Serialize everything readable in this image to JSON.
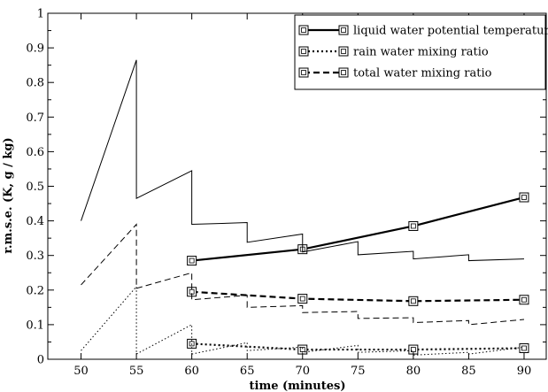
{
  "chart_data": {
    "type": "line",
    "title": "",
    "xlabel": "time (minutes)",
    "ylabel": "r.m.s.e. (K,  g / kg)",
    "xlim": [
      47,
      92
    ],
    "ylim": [
      0,
      1
    ],
    "xticks": [
      50,
      55,
      60,
      65,
      70,
      75,
      80,
      85,
      90
    ],
    "yticks": [
      0,
      0.1,
      0.2,
      0.3,
      0.4,
      0.5,
      0.6,
      0.7,
      0.8,
      0.9,
      1
    ],
    "grid": false,
    "legend_position": "top-right",
    "series": [
      {
        "name": "liquid water potential temperature",
        "style": "solid",
        "thick": true,
        "marker": "square",
        "x": [
          60,
          70,
          80,
          90
        ],
        "y": [
          0.285,
          0.318,
          0.385,
          0.468
        ]
      },
      {
        "name": "rain water mixing ratio",
        "style": "dotted",
        "thick": true,
        "marker": "square",
        "x": [
          60,
          70,
          80,
          90
        ],
        "y": [
          0.045,
          0.028,
          0.028,
          0.032
        ]
      },
      {
        "name": "total water mixing ratio",
        "style": "dashed",
        "thick": true,
        "marker": "square",
        "x": [
          60,
          70,
          80,
          90
        ],
        "y": [
          0.195,
          0.175,
          0.168,
          0.172
        ]
      },
      {
        "name": "",
        "style": "solid",
        "thick": false,
        "marker": "none",
        "x": [
          50,
          55,
          55,
          60,
          60,
          65,
          65,
          70,
          70,
          75,
          75,
          80,
          80,
          85,
          85,
          90
        ],
        "y": [
          0.4,
          0.865,
          0.465,
          0.545,
          0.39,
          0.395,
          0.338,
          0.362,
          0.31,
          0.34,
          0.302,
          0.312,
          0.29,
          0.302,
          0.285,
          0.29
        ]
      },
      {
        "name": "",
        "style": "dashed",
        "thick": false,
        "marker": "none",
        "x": [
          50,
          55,
          55,
          60,
          60,
          65,
          65,
          70,
          70,
          75,
          75,
          80,
          80,
          85,
          85,
          90
        ],
        "y": [
          0.215,
          0.39,
          0.205,
          0.25,
          0.172,
          0.185,
          0.15,
          0.155,
          0.135,
          0.138,
          0.118,
          0.12,
          0.106,
          0.112,
          0.1,
          0.115
        ]
      },
      {
        "name": "",
        "style": "dotted",
        "thick": false,
        "marker": "none",
        "x": [
          50,
          55,
          55,
          60,
          60,
          65,
          65,
          70,
          70,
          75,
          75,
          80,
          80,
          85,
          85,
          90
        ],
        "y": [
          0.025,
          0.21,
          0.015,
          0.1,
          0.015,
          0.048,
          0.025,
          0.035,
          0.02,
          0.04,
          0.02,
          0.025,
          0.012,
          0.02,
          0.015,
          0.035
        ]
      }
    ]
  }
}
